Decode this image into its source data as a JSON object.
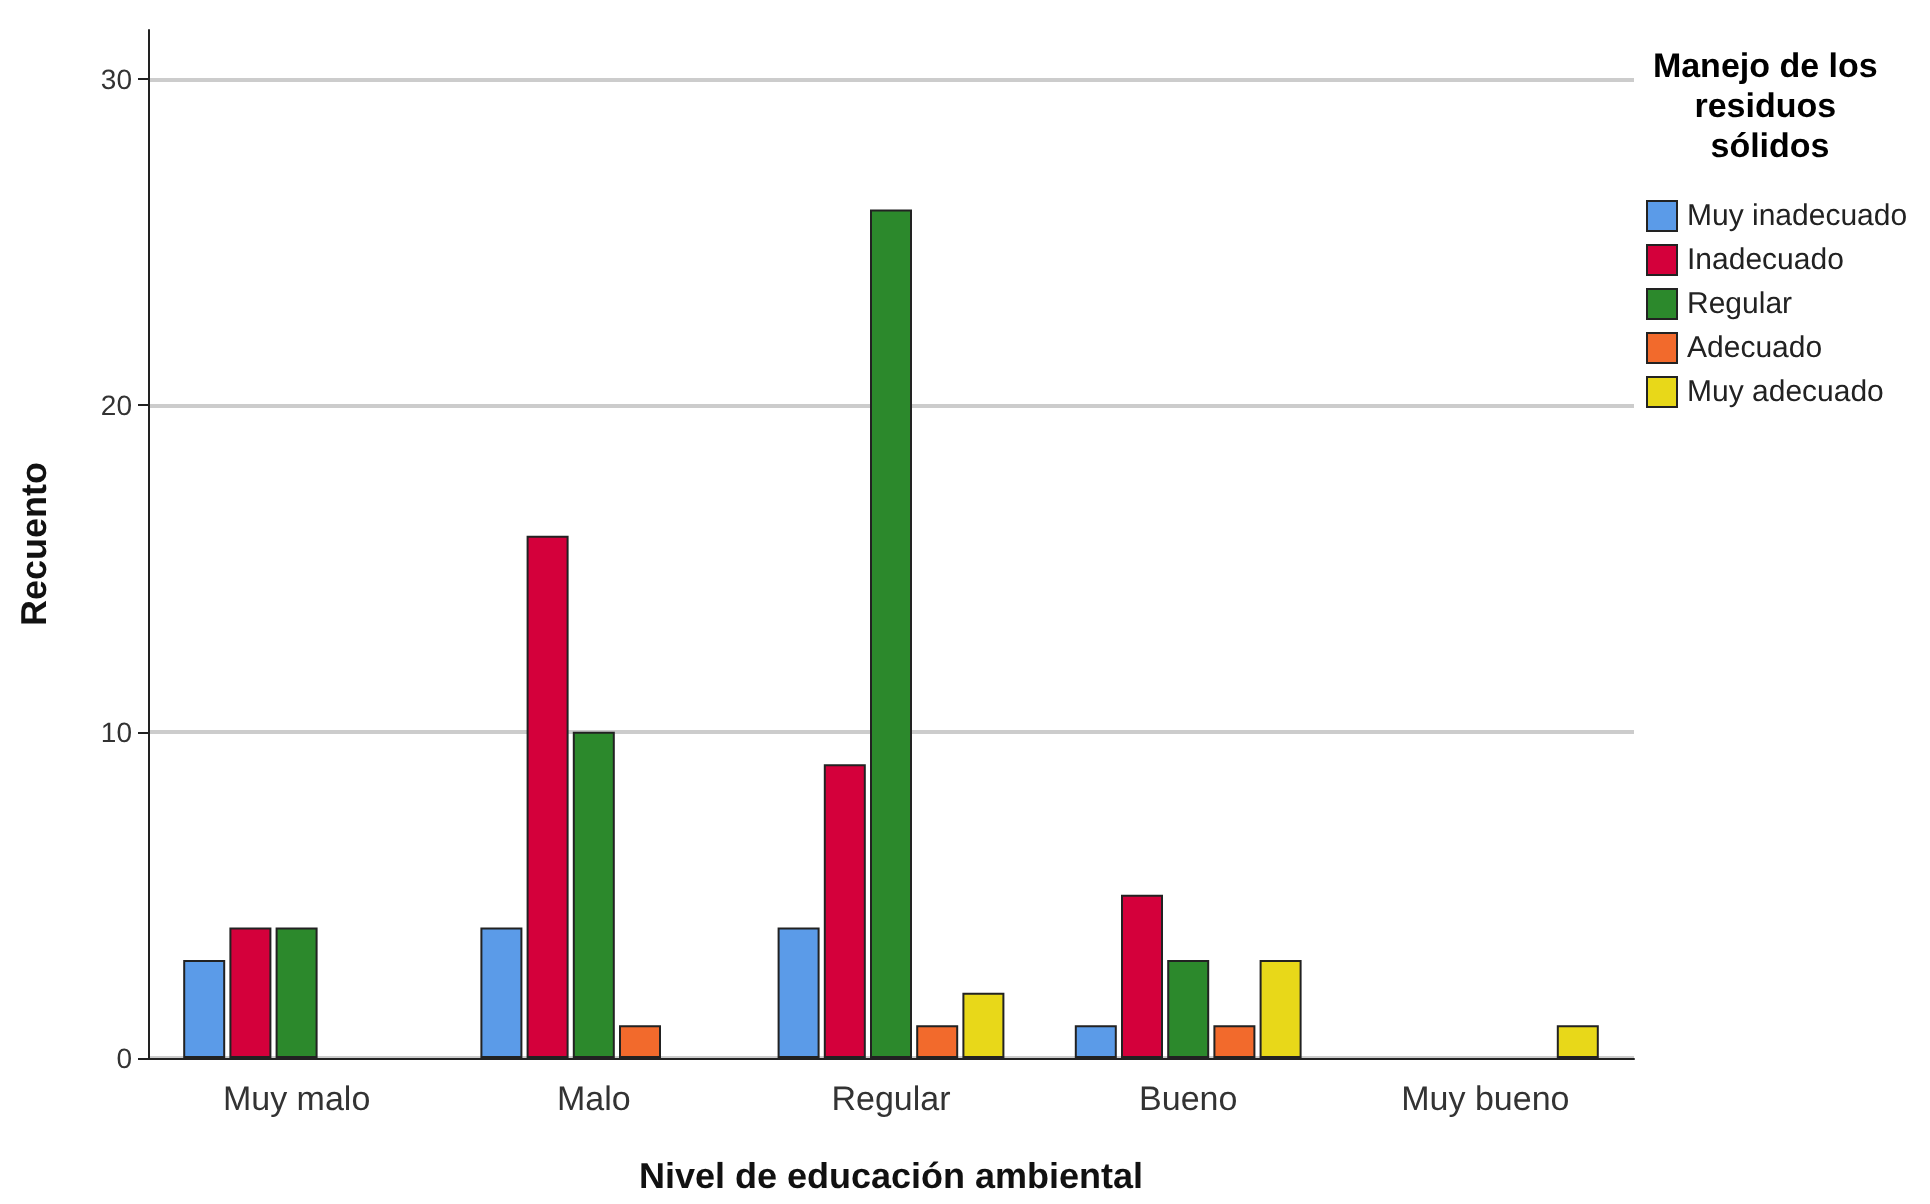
{
  "chart_data": {
    "type": "bar",
    "xlabel": "Nivel de educación ambiental",
    "ylabel": "Recuento",
    "legend_title": "Manejo de los residuos sólidos",
    "categories": [
      "Muy malo",
      "Malo",
      "Regular",
      "Bueno",
      "Muy bueno"
    ],
    "series": [
      {
        "name": "Muy inadecuado",
        "color": "#5b9be8",
        "values": [
          3,
          4,
          4,
          1,
          null
        ]
      },
      {
        "name": "Inadecuado",
        "color": "#d4003b",
        "values": [
          4,
          16,
          9,
          5,
          null
        ]
      },
      {
        "name": "Regular",
        "color": "#2c892c",
        "values": [
          4,
          10,
          26,
          3,
          null
        ]
      },
      {
        "name": "Adecuado",
        "color": "#f26a2c",
        "values": [
          null,
          1,
          1,
          1,
          null
        ]
      },
      {
        "name": "Muy adecuado",
        "color": "#e8d819",
        "values": [
          null,
          null,
          2,
          3,
          1
        ]
      }
    ],
    "ylim": [
      0,
      31.5
    ],
    "yticks": [
      0,
      10,
      20,
      30
    ],
    "grid": "y",
    "legend": "top right"
  }
}
